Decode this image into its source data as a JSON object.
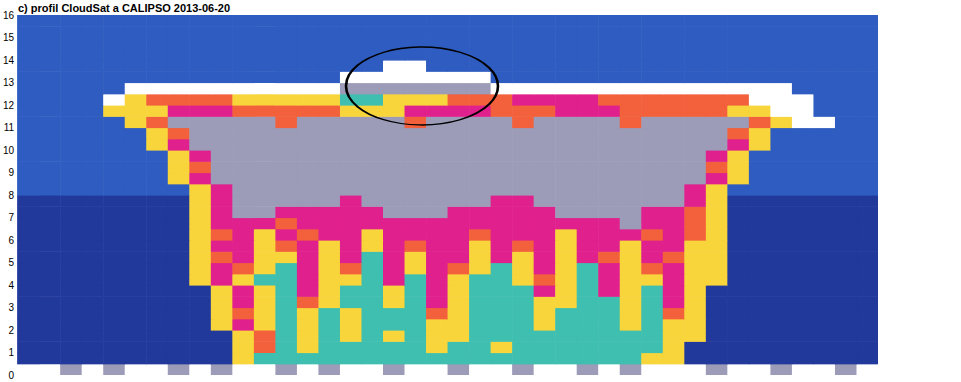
{
  "chart_data": {
    "type": "heatmap",
    "title": "c) profil CloudSat a CALIPSO 2013-06-20",
    "xlim": [
      0,
      40
    ],
    "ylim": [
      0,
      16
    ],
    "yticks": [
      0,
      1,
      2,
      3,
      4,
      5,
      6,
      7,
      8,
      9,
      10,
      11,
      12,
      13,
      14,
      15,
      16
    ],
    "tick_labels": "y",
    "grid": false,
    "colors": [
      "#22399c",
      "#2f5cc0",
      "#3fbfb0",
      "#f7d53b",
      "#f2603c",
      "#e0208c",
      "#9c9cb8",
      "#ffffff"
    ],
    "x_bins": [
      0,
      1,
      2,
      3,
      4,
      5,
      6,
      7,
      8,
      9,
      10,
      11,
      12,
      13,
      14,
      15,
      16,
      17,
      18,
      19,
      20,
      21,
      22,
      23,
      24,
      25,
      26,
      27,
      28,
      29,
      30,
      31,
      32,
      33,
      34,
      35,
      36,
      37,
      38,
      39,
      40
    ],
    "y_bins": [
      0,
      0.5,
      1,
      1.5,
      2,
      2.5,
      3,
      3.5,
      4,
      4.5,
      5,
      5.5,
      6,
      6.5,
      7,
      7.5,
      8,
      8.5,
      9,
      9.5,
      10,
      10.5,
      11,
      11.5,
      12,
      12.5,
      13,
      13.5,
      14,
      14.5,
      15,
      15.5,
      16
    ],
    "cells": [
      [
        7,
        7,
        6,
        7,
        6,
        7,
        7,
        6,
        7,
        6,
        7,
        7,
        6,
        7,
        6,
        7,
        7,
        6,
        7,
        7,
        6,
        7,
        7,
        6,
        7,
        7,
        6,
        7,
        6,
        7,
        7,
        7,
        6,
        7,
        7,
        6,
        7,
        7,
        6,
        7
      ],
      [
        0,
        0,
        0,
        0,
        0,
        0,
        0,
        0,
        0,
        0,
        3,
        2,
        2,
        2,
        2,
        2,
        2,
        2,
        2,
        2,
        2,
        2,
        2,
        2,
        2,
        2,
        2,
        2,
        2,
        3,
        3,
        0,
        0,
        0,
        0,
        0,
        0,
        0,
        0,
        0
      ],
      [
        0,
        0,
        0,
        0,
        0,
        0,
        0,
        0,
        0,
        0,
        3,
        4,
        2,
        3,
        2,
        2,
        2,
        2,
        2,
        3,
        2,
        2,
        3,
        2,
        2,
        2,
        2,
        2,
        2,
        2,
        3,
        0,
        0,
        0,
        0,
        0,
        0,
        0,
        0,
        0
      ],
      [
        0,
        0,
        0,
        0,
        0,
        0,
        0,
        0,
        0,
        0,
        3,
        4,
        2,
        3,
        2,
        3,
        2,
        3,
        2,
        3,
        3,
        2,
        2,
        2,
        2,
        2,
        2,
        2,
        2,
        2,
        3,
        3,
        0,
        0,
        0,
        0,
        0,
        0,
        0,
        0
      ],
      [
        0,
        0,
        0,
        0,
        0,
        0,
        0,
        0,
        0,
        3,
        5,
        3,
        2,
        3,
        2,
        3,
        2,
        2,
        2,
        3,
        3,
        2,
        2,
        2,
        3,
        2,
        2,
        2,
        3,
        2,
        3,
        3,
        0,
        0,
        0,
        0,
        0,
        0,
        0,
        0
      ],
      [
        0,
        0,
        0,
        0,
        0,
        0,
        0,
        0,
        0,
        3,
        4,
        3,
        2,
        3,
        2,
        3,
        2,
        2,
        2,
        4,
        3,
        2,
        2,
        2,
        3,
        2,
        2,
        2,
        3,
        2,
        4,
        3,
        0,
        0,
        0,
        0,
        0,
        0,
        0,
        0
      ],
      [
        0,
        0,
        0,
        0,
        0,
        0,
        0,
        0,
        0,
        3,
        5,
        3,
        2,
        4,
        3,
        2,
        2,
        3,
        2,
        5,
        3,
        2,
        2,
        2,
        3,
        3,
        2,
        2,
        3,
        2,
        5,
        3,
        0,
        0,
        0,
        0,
        0,
        0,
        0,
        0
      ],
      [
        0,
        0,
        0,
        0,
        0,
        0,
        0,
        0,
        0,
        3,
        5,
        3,
        2,
        5,
        3,
        2,
        2,
        3,
        2,
        5,
        3,
        2,
        2,
        2,
        5,
        3,
        2,
        5,
        3,
        2,
        5,
        3,
        0,
        0,
        0,
        0,
        0,
        0,
        0,
        0
      ],
      [
        0,
        0,
        0,
        0,
        0,
        0,
        0,
        0,
        3,
        5,
        3,
        2,
        2,
        5,
        3,
        3,
        2,
        5,
        2,
        5,
        3,
        2,
        2,
        3,
        4,
        3,
        2,
        5,
        3,
        3,
        5,
        3,
        3,
        0,
        0,
        0,
        0,
        0,
        0,
        0
      ],
      [
        0,
        0,
        0,
        0,
        0,
        0,
        0,
        0,
        3,
        5,
        4,
        3,
        2,
        5,
        3,
        4,
        2,
        5,
        3,
        5,
        4,
        3,
        2,
        3,
        5,
        3,
        2,
        5,
        3,
        4,
        5,
        3,
        3,
        0,
        0,
        0,
        0,
        0,
        0,
        0
      ],
      [
        0,
        0,
        0,
        0,
        0,
        0,
        0,
        0,
        3,
        4,
        5,
        3,
        3,
        5,
        3,
        5,
        2,
        5,
        3,
        5,
        5,
        3,
        5,
        3,
        5,
        3,
        5,
        4,
        3,
        5,
        4,
        3,
        3,
        0,
        0,
        0,
        0,
        0,
        0,
        0
      ],
      [
        0,
        0,
        0,
        0,
        0,
        0,
        0,
        0,
        3,
        5,
        5,
        3,
        4,
        5,
        3,
        5,
        3,
        5,
        4,
        5,
        5,
        3,
        5,
        4,
        5,
        3,
        5,
        5,
        3,
        5,
        5,
        3,
        3,
        0,
        0,
        0,
        0,
        0,
        0,
        0
      ],
      [
        0,
        0,
        0,
        0,
        0,
        0,
        0,
        0,
        3,
        4,
        5,
        3,
        5,
        4,
        5,
        5,
        3,
        5,
        5,
        5,
        5,
        4,
        5,
        5,
        5,
        3,
        5,
        5,
        5,
        4,
        5,
        4,
        3,
        0,
        0,
        0,
        0,
        0,
        0,
        0
      ],
      [
        0,
        0,
        0,
        0,
        0,
        0,
        0,
        0,
        3,
        5,
        5,
        5,
        4,
        5,
        5,
        5,
        5,
        5,
        5,
        5,
        5,
        5,
        5,
        5,
        5,
        5,
        5,
        5,
        6,
        5,
        5,
        4,
        3,
        0,
        0,
        0,
        0,
        0,
        0,
        0
      ],
      [
        0,
        0,
        0,
        0,
        0,
        0,
        0,
        0,
        3,
        5,
        6,
        6,
        5,
        5,
        5,
        5,
        5,
        6,
        6,
        6,
        5,
        5,
        5,
        5,
        5,
        6,
        6,
        6,
        6,
        5,
        5,
        4,
        3,
        0,
        0,
        0,
        0,
        0,
        0,
        0
      ],
      [
        0,
        0,
        0,
        0,
        0,
        0,
        0,
        0,
        3,
        5,
        6,
        6,
        6,
        6,
        6,
        5,
        6,
        6,
        6,
        6,
        6,
        6,
        5,
        5,
        6,
        6,
        6,
        6,
        6,
        6,
        6,
        5,
        3,
        0,
        0,
        0,
        0,
        0,
        0,
        0
      ],
      [
        1,
        1,
        1,
        1,
        1,
        1,
        1,
        1,
        3,
        5,
        6,
        6,
        6,
        6,
        6,
        6,
        6,
        6,
        6,
        6,
        6,
        6,
        6,
        6,
        6,
        6,
        6,
        6,
        6,
        6,
        6,
        5,
        3,
        1,
        1,
        1,
        1,
        1,
        1,
        1
      ],
      [
        1,
        1,
        1,
        1,
        1,
        1,
        1,
        3,
        5,
        6,
        6,
        6,
        6,
        6,
        6,
        6,
        6,
        6,
        6,
        6,
        6,
        6,
        6,
        6,
        6,
        6,
        6,
        6,
        6,
        6,
        6,
        6,
        5,
        3,
        1,
        1,
        1,
        1,
        1,
        1
      ],
      [
        1,
        1,
        1,
        1,
        1,
        1,
        1,
        3,
        4,
        6,
        6,
        6,
        6,
        6,
        6,
        6,
        6,
        6,
        6,
        6,
        6,
        6,
        6,
        6,
        6,
        6,
        6,
        6,
        6,
        6,
        6,
        6,
        4,
        3,
        1,
        1,
        1,
        1,
        1,
        1
      ],
      [
        1,
        1,
        1,
        1,
        1,
        1,
        1,
        3,
        5,
        6,
        6,
        6,
        6,
        6,
        6,
        6,
        6,
        6,
        6,
        6,
        6,
        6,
        6,
        6,
        6,
        6,
        6,
        6,
        6,
        6,
        6,
        6,
        5,
        3,
        1,
        1,
        1,
        1,
        1,
        1
      ],
      [
        1,
        1,
        1,
        1,
        1,
        1,
        3,
        5,
        6,
        6,
        6,
        6,
        6,
        6,
        6,
        6,
        6,
        6,
        6,
        6,
        6,
        6,
        6,
        6,
        6,
        6,
        6,
        6,
        6,
        6,
        6,
        6,
        6,
        5,
        3,
        1,
        1,
        1,
        1,
        1
      ],
      [
        1,
        1,
        1,
        1,
        1,
        1,
        3,
        4,
        6,
        6,
        6,
        6,
        6,
        6,
        6,
        6,
        6,
        6,
        6,
        6,
        6,
        6,
        6,
        6,
        6,
        6,
        6,
        6,
        6,
        6,
        6,
        6,
        6,
        4,
        3,
        1,
        1,
        1,
        1,
        1
      ],
      [
        1,
        1,
        1,
        1,
        1,
        3,
        4,
        6,
        6,
        6,
        6,
        6,
        4,
        6,
        6,
        6,
        6,
        6,
        4,
        6,
        6,
        6,
        6,
        4,
        6,
        6,
        6,
        6,
        4,
        6,
        6,
        6,
        6,
        6,
        4,
        3,
        7,
        7,
        1,
        1
      ],
      [
        1,
        1,
        1,
        1,
        3,
        3,
        3,
        5,
        5,
        5,
        4,
        4,
        4,
        4,
        4,
        3,
        3,
        3,
        5,
        5,
        5,
        5,
        4,
        4,
        4,
        5,
        5,
        5,
        4,
        4,
        4,
        4,
        4,
        3,
        3,
        7,
        7,
        1,
        1,
        1
      ],
      [
        1,
        1,
        1,
        1,
        7,
        3,
        4,
        4,
        4,
        4,
        3,
        3,
        3,
        3,
        3,
        2,
        2,
        3,
        3,
        3,
        4,
        4,
        4,
        5,
        5,
        5,
        5,
        4,
        4,
        4,
        4,
        4,
        4,
        4,
        7,
        7,
        7,
        1,
        1,
        1
      ],
      [
        1,
        1,
        1,
        1,
        1,
        7,
        7,
        7,
        7,
        7,
        7,
        7,
        7,
        7,
        7,
        6,
        6,
        6,
        6,
        6,
        6,
        6,
        7,
        7,
        7,
        7,
        7,
        7,
        7,
        7,
        7,
        7,
        7,
        7,
        7,
        7,
        1,
        1,
        1,
        1
      ],
      [
        1,
        1,
        1,
        1,
        1,
        1,
        1,
        1,
        1,
        1,
        1,
        1,
        1,
        1,
        1,
        7,
        7,
        7,
        7,
        7,
        7,
        7,
        1,
        1,
        1,
        1,
        1,
        1,
        1,
        1,
        1,
        1,
        1,
        1,
        1,
        1,
        1,
        1,
        1,
        1
      ],
      [
        1,
        1,
        1,
        1,
        1,
        1,
        1,
        1,
        1,
        1,
        1,
        1,
        1,
        1,
        1,
        1,
        1,
        7,
        7,
        1,
        1,
        1,
        1,
        1,
        1,
        1,
        1,
        1,
        1,
        1,
        1,
        1,
        1,
        1,
        1,
        1,
        1,
        1,
        1,
        1
      ],
      [
        1,
        1,
        1,
        1,
        1,
        1,
        1,
        1,
        1,
        1,
        1,
        1,
        1,
        1,
        1,
        1,
        1,
        1,
        1,
        1,
        1,
        1,
        1,
        1,
        1,
        1,
        1,
        1,
        1,
        1,
        1,
        1,
        1,
        1,
        1,
        1,
        1,
        1,
        1,
        1
      ],
      [
        1,
        1,
        1,
        1,
        1,
        1,
        1,
        1,
        1,
        1,
        1,
        1,
        1,
        1,
        1,
        1,
        1,
        1,
        1,
        1,
        1,
        1,
        1,
        1,
        1,
        1,
        1,
        1,
        1,
        1,
        1,
        1,
        1,
        1,
        1,
        1,
        1,
        1,
        1,
        1
      ],
      [
        1,
        1,
        1,
        1,
        1,
        1,
        1,
        1,
        1,
        1,
        1,
        1,
        1,
        1,
        1,
        1,
        1,
        1,
        1,
        1,
        1,
        1,
        1,
        1,
        1,
        1,
        1,
        1,
        1,
        1,
        1,
        1,
        1,
        1,
        1,
        1,
        1,
        1,
        1,
        1
      ],
      [
        1,
        1,
        1,
        1,
        1,
        1,
        1,
        1,
        1,
        1,
        1,
        1,
        1,
        1,
        1,
        1,
        1,
        1,
        1,
        1,
        1,
        1,
        1,
        1,
        1,
        1,
        1,
        1,
        1,
        1,
        1,
        1,
        1,
        1,
        1,
        1,
        1,
        1,
        1,
        1
      ]
    ]
  }
}
